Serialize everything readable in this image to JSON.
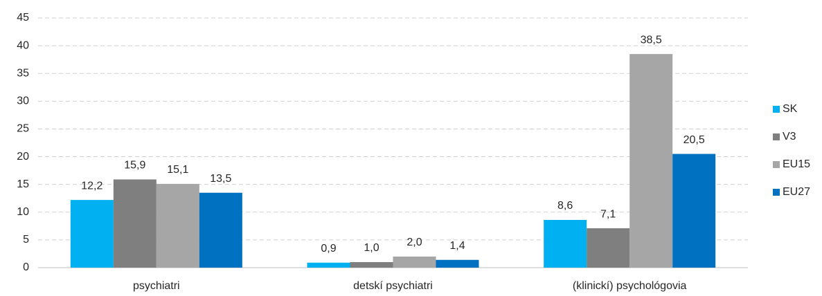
{
  "chart_data": {
    "type": "bar",
    "categories": [
      "psychiatri",
      "detskí psychiatri",
      "(klinickí) psychológovia"
    ],
    "series": [
      {
        "name": "SK",
        "color": "#00b0f0",
        "values": [
          12.2,
          0.9,
          8.6
        ],
        "value_labels": [
          "12,2",
          "0,9",
          "8,6"
        ]
      },
      {
        "name": "V3",
        "color": "#7f7f7f",
        "values": [
          15.9,
          1.0,
          7.1
        ],
        "value_labels": [
          "15,9",
          "1,0",
          "7,1"
        ]
      },
      {
        "name": "EU15",
        "color": "#a6a6a6",
        "values": [
          15.1,
          2.0,
          38.5
        ],
        "value_labels": [
          "15,1",
          "2,0",
          "38,5"
        ]
      },
      {
        "name": "EU27",
        "color": "#0070c0",
        "values": [
          13.5,
          1.4,
          20.5
        ],
        "value_labels": [
          "13,5",
          "1,4",
          "20,5"
        ]
      }
    ],
    "ylim": [
      0,
      45
    ],
    "yticks": [
      0,
      5,
      10,
      15,
      20,
      25,
      30,
      35,
      40,
      45
    ],
    "grid": true,
    "legend": "right"
  }
}
